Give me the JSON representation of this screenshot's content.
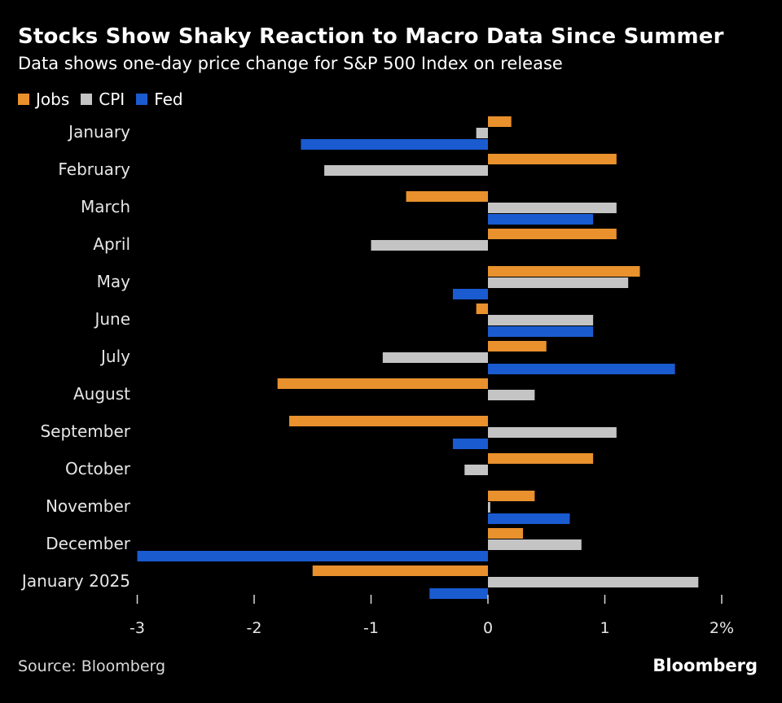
{
  "chart_data": {
    "type": "bar",
    "orientation": "horizontal",
    "title": "Stocks Show Shaky Reaction to Macro Data Since Summer",
    "subtitle": "Data shows one-day price change for S&P 500 Index on release",
    "categories": [
      "January",
      "February",
      "March",
      "April",
      "May",
      "June",
      "July",
      "August",
      "September",
      "October",
      "November",
      "December",
      "January 2025"
    ],
    "series": [
      {
        "name": "Jobs",
        "color": "#e8912d",
        "values": [
          0.2,
          1.1,
          -0.7,
          1.1,
          1.3,
          -0.1,
          0.5,
          -1.8,
          -1.7,
          0.9,
          0.4,
          0.3,
          -1.5
        ]
      },
      {
        "name": "CPI",
        "color": "#c4c4c4",
        "values": [
          -0.1,
          -1.4,
          1.1,
          -1.0,
          1.2,
          0.9,
          -0.9,
          0.4,
          1.1,
          -0.2,
          0.02,
          0.8,
          1.8
        ]
      },
      {
        "name": "Fed",
        "color": "#1a5bd0",
        "values": [
          -1.6,
          null,
          0.9,
          null,
          -0.3,
          0.9,
          1.6,
          null,
          -0.3,
          null,
          0.7,
          -3.0,
          -0.5
        ]
      }
    ],
    "xlim": [
      -3,
      2
    ],
    "xticks": [
      {
        "value": -3,
        "label": "-3"
      },
      {
        "value": -2,
        "label": "-2"
      },
      {
        "value": -1,
        "label": "-1"
      },
      {
        "value": 0,
        "label": "0"
      },
      {
        "value": 1,
        "label": "1"
      },
      {
        "value": 2,
        "label": "2%"
      }
    ],
    "legend_position": "top-left",
    "grid": false
  },
  "legend": {
    "items": [
      {
        "label": "Jobs",
        "color": "#e8912d"
      },
      {
        "label": "CPI",
        "color": "#c4c4c4"
      },
      {
        "label": "Fed",
        "color": "#1a5bd0"
      }
    ]
  },
  "footer": {
    "source": "Source: Bloomberg",
    "brand": "Bloomberg"
  }
}
